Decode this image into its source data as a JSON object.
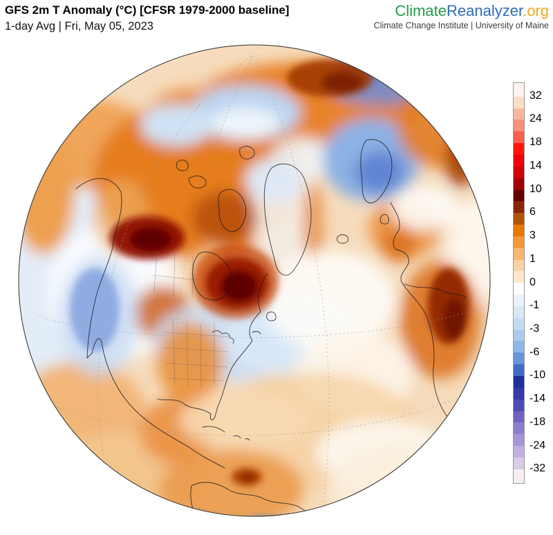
{
  "header": {
    "title": "GFS 2m T Anomaly (°C) [CFSR 1979-2000 baseline]",
    "subtitle": "1-day Avg | Fri, May 05, 2023"
  },
  "brand": {
    "logo_parts": [
      {
        "text": "Climate",
        "color": "#1f9e45"
      },
      {
        "text": "Reanalyzer",
        "color": "#2e6db4"
      },
      {
        "text": ".org",
        "color": "#f9a61f"
      }
    ],
    "tagline": "Climate Change Institute | University of Maine"
  },
  "map": {
    "description": "Orthographic globe of 2 m air temperature anomaly centered on North America, Greenland and the North Atlantic; deep warm anomalies over western Canada, Quebec, Siberia and northwest Africa; cool anomalies over the western/eastern U.S., Scandinavia and the Kara Sea."
  },
  "colorbar": {
    "unit": "°C",
    "tick_labels": [
      "32",
      "24",
      "18",
      "14",
      "10",
      "6",
      "3",
      "1",
      "0",
      "-1",
      "-3",
      "-6",
      "-10",
      "-14",
      "-18",
      "-24",
      "-32"
    ],
    "segment_colors": [
      "#fdf3f0",
      "#f8dfc6",
      "#f9b89c",
      "#fa8f7b",
      "#fb604d",
      "#fd1507",
      "#ee0300",
      "#d40200",
      "#a30000",
      "#650000",
      "#8c2600",
      "#b25400",
      "#e87a00",
      "#f39a38",
      "#f8b870",
      "#fbd2a6",
      "#fde8cc",
      "#fefefe",
      "#eaf3fb",
      "#d9e8f7",
      "#c4dbf3",
      "#a9ccee",
      "#8db9e7",
      "#6496d9",
      "#3f6cc6",
      "#1f2e9d",
      "#343aa8",
      "#4f4bb5",
      "#6f63c2",
      "#8d7ecd",
      "#a795d6",
      "#c0b0e0",
      "#d8cce9",
      "#f6eef3"
    ],
    "border_color": "#9a9a9a"
  }
}
